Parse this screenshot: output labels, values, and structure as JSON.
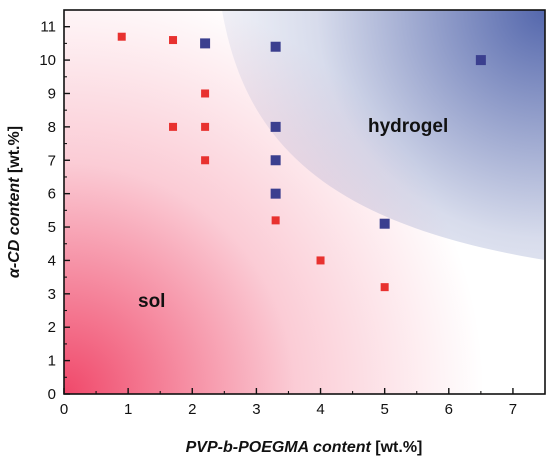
{
  "chart_data": {
    "type": "scatter",
    "xlabel": "PVP-b-POEGMA content",
    "xlabel_unit": "[wt.%]",
    "ylabel": "α-CD content",
    "ylabel_unit": "[wt.%]",
    "xlim": [
      0,
      7.5
    ],
    "ylim": [
      0,
      11.5
    ],
    "x_ticks": [
      "0",
      "1",
      "2",
      "3",
      "4",
      "5",
      "6",
      "7"
    ],
    "y_ticks": [
      "0",
      "1",
      "2",
      "3",
      "4",
      "5",
      "6",
      "7",
      "8",
      "9",
      "10",
      "11"
    ],
    "grid": false,
    "region_labels": [
      "hydrogel",
      "sol"
    ],
    "colors": {
      "sol": "#e8312f",
      "hydrogel": "#3b3f8f",
      "sol_region": "#f0486a",
      "hydrogel_region": "#4b5fa8"
    },
    "series": [
      {
        "key": "sol",
        "points": [
          [
            0.9,
            10.7
          ],
          [
            1.7,
            10.6
          ],
          [
            1.7,
            8.0
          ],
          [
            2.2,
            9.0
          ],
          [
            2.2,
            8.0
          ],
          [
            2.2,
            7.0
          ],
          [
            3.3,
            5.2
          ],
          [
            4.0,
            4.0
          ],
          [
            5.0,
            3.2
          ]
        ]
      },
      {
        "key": "hydrogel",
        "points": [
          [
            2.2,
            10.5
          ],
          [
            3.3,
            10.4
          ],
          [
            3.3,
            8.0
          ],
          [
            3.3,
            7.0
          ],
          [
            3.3,
            6.0
          ],
          [
            5.0,
            5.1
          ],
          [
            6.5,
            10.0
          ]
        ]
      }
    ]
  }
}
